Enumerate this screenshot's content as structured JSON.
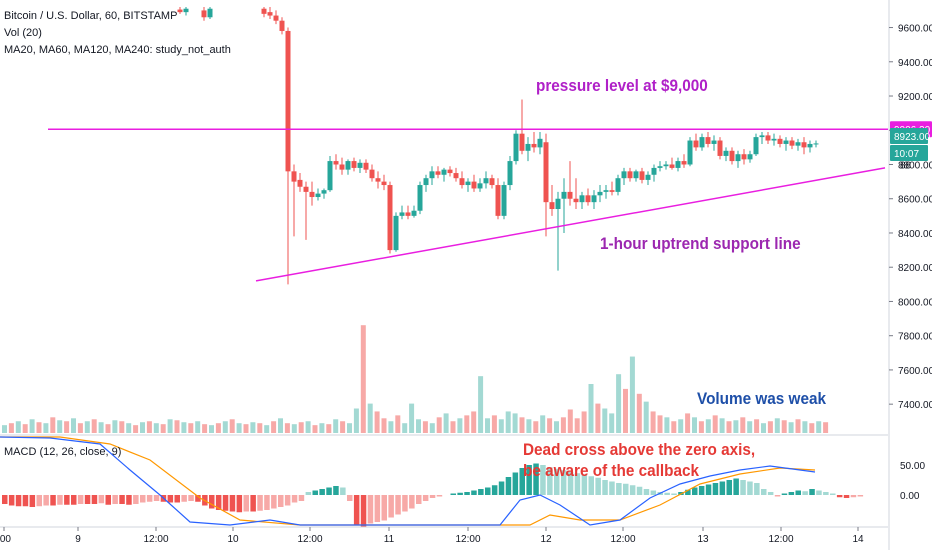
{
  "header": {
    "title": "Bitcoin / U.S. Dollar, 60, BITSTAMP",
    "vol": "Vol (20)",
    "ma": "MA20, MA60, MA120, MA240: study_not_auth"
  },
  "macd_header": "MACD (12, 26, close, 9)",
  "annotations": {
    "pressure": "pressure level at $9,000",
    "support": "1-hour uptrend support line",
    "volume": "Volume was weak",
    "dead_cross_1": "Dead cross above the zero axis,",
    "dead_cross_2": "be aware of the callback"
  },
  "price_badges": {
    "pressure": "9006.20",
    "last": "8923.00",
    "countdown": "10:07",
    "partial": "88"
  },
  "colors": {
    "up": "#26a69a",
    "down": "#ef5350",
    "up_light": "#a3d9d3",
    "down_light": "#f7a9a7",
    "magenta": "#e91ee0",
    "pressure_text": "#b020c8",
    "support_text": "#9c27b0",
    "volume_text": "#1e4fa8",
    "macd_text": "#e53935",
    "macd_line": "#2962ff",
    "signal_line": "#ff9800"
  },
  "chart_data": {
    "type": "candlestick",
    "price_axis": {
      "range": [
        7290,
        9720
      ],
      "ticks": [
        "9600.00",
        "9400.00",
        "9200.00",
        "9000.00",
        "8800.00",
        "8600.00",
        "8400.00",
        "8200.00",
        "8000.00",
        "7800.00",
        "7600.00",
        "7400.00"
      ]
    },
    "macd_axis": {
      "ticks": [
        "50.00",
        "0.00"
      ]
    },
    "time_axis": {
      "range": [
        0,
        868
      ],
      "labels": [
        {
          "t": 4,
          "label": ":00"
        },
        {
          "t": 78,
          "label": "9"
        },
        {
          "t": 156,
          "label": "12:00"
        },
        {
          "t": 233,
          "label": "10"
        },
        {
          "t": 310,
          "label": "12:00"
        },
        {
          "t": 389,
          "label": "11"
        },
        {
          "t": 468,
          "label": "12:00"
        },
        {
          "t": 546,
          "label": "12"
        },
        {
          "t": 623,
          "label": "12:00"
        },
        {
          "t": 703,
          "label": "13"
        },
        {
          "t": 781,
          "label": "12:00"
        },
        {
          "t": 858,
          "label": "14"
        }
      ]
    },
    "pressure_level": 9006.2,
    "support_line": [
      {
        "t": 256,
        "price": 8120
      },
      {
        "t": 885,
        "price": 8780
      }
    ],
    "candles": [
      {
        "t": 180,
        "o": 9705,
        "h": 9720,
        "l": 9680,
        "c": 9690
      },
      {
        "t": 186,
        "o": 9690,
        "h": 9720,
        "l": 9670,
        "c": 9710
      },
      {
        "t": 204,
        "o": 9700,
        "h": 9720,
        "l": 9640,
        "c": 9660
      },
      {
        "t": 210,
        "o": 9660,
        "h": 9720,
        "l": 9650,
        "c": 9710
      },
      {
        "t": 264,
        "o": 9710,
        "h": 9720,
        "l": 9660,
        "c": 9680
      },
      {
        "t": 270,
        "o": 9690,
        "h": 9720,
        "l": 9650,
        "c": 9670
      },
      {
        "t": 276,
        "o": 9670,
        "h": 9700,
        "l": 9620,
        "c": 9640
      },
      {
        "t": 282,
        "o": 9640,
        "h": 9660,
        "l": 9560,
        "c": 9580
      },
      {
        "t": 288,
        "o": 9580,
        "h": 9600,
        "l": 8100,
        "c": 8760
      },
      {
        "t": 294,
        "o": 8760,
        "h": 8800,
        "l": 8380,
        "c": 8700
      },
      {
        "t": 300,
        "o": 8710,
        "h": 8750,
        "l": 8640,
        "c": 8670
      },
      {
        "t": 306,
        "o": 8670,
        "h": 8700,
        "l": 8360,
        "c": 8640
      },
      {
        "t": 312,
        "o": 8640,
        "h": 8700,
        "l": 8560,
        "c": 8610
      },
      {
        "t": 318,
        "o": 8610,
        "h": 8660,
        "l": 8590,
        "c": 8630
      },
      {
        "t": 324,
        "o": 8630,
        "h": 8660,
        "l": 8600,
        "c": 8650
      },
      {
        "t": 330,
        "o": 8650,
        "h": 8850,
        "l": 8640,
        "c": 8820
      },
      {
        "t": 336,
        "o": 8820,
        "h": 8860,
        "l": 8770,
        "c": 8800
      },
      {
        "t": 342,
        "o": 8800,
        "h": 8840,
        "l": 8740,
        "c": 8770
      },
      {
        "t": 348,
        "o": 8770,
        "h": 8830,
        "l": 8740,
        "c": 8820
      },
      {
        "t": 354,
        "o": 8820,
        "h": 8840,
        "l": 8760,
        "c": 8780
      },
      {
        "t": 360,
        "o": 8780,
        "h": 8830,
        "l": 8750,
        "c": 8810
      },
      {
        "t": 366,
        "o": 8810,
        "h": 8830,
        "l": 8750,
        "c": 8770
      },
      {
        "t": 372,
        "o": 8770,
        "h": 8800,
        "l": 8700,
        "c": 8720
      },
      {
        "t": 378,
        "o": 8720,
        "h": 8760,
        "l": 8660,
        "c": 8700
      },
      {
        "t": 384,
        "o": 8700,
        "h": 8740,
        "l": 8650,
        "c": 8680
      },
      {
        "t": 390,
        "o": 8680,
        "h": 8700,
        "l": 8280,
        "c": 8300
      },
      {
        "t": 396,
        "o": 8300,
        "h": 8520,
        "l": 8290,
        "c": 8500
      },
      {
        "t": 402,
        "o": 8500,
        "h": 8560,
        "l": 8480,
        "c": 8520
      },
      {
        "t": 408,
        "o": 8520,
        "h": 8560,
        "l": 8480,
        "c": 8500
      },
      {
        "t": 414,
        "o": 8500,
        "h": 8560,
        "l": 8490,
        "c": 8530
      },
      {
        "t": 420,
        "o": 8530,
        "h": 8700,
        "l": 8510,
        "c": 8680
      },
      {
        "t": 426,
        "o": 8680,
        "h": 8740,
        "l": 8640,
        "c": 8720
      },
      {
        "t": 432,
        "o": 8720,
        "h": 8790,
        "l": 8680,
        "c": 8760
      },
      {
        "t": 438,
        "o": 8760,
        "h": 8790,
        "l": 8720,
        "c": 8740
      },
      {
        "t": 444,
        "o": 8740,
        "h": 8780,
        "l": 8700,
        "c": 8770
      },
      {
        "t": 450,
        "o": 8770,
        "h": 8790,
        "l": 8730,
        "c": 8750
      },
      {
        "t": 456,
        "o": 8750,
        "h": 8780,
        "l": 8700,
        "c": 8720
      },
      {
        "t": 462,
        "o": 8720,
        "h": 8760,
        "l": 8660,
        "c": 8680
      },
      {
        "t": 468,
        "o": 8680,
        "h": 8720,
        "l": 8640,
        "c": 8700
      },
      {
        "t": 474,
        "o": 8700,
        "h": 8740,
        "l": 8640,
        "c": 8660
      },
      {
        "t": 480,
        "o": 8660,
        "h": 8720,
        "l": 8640,
        "c": 8690
      },
      {
        "t": 486,
        "o": 8690,
        "h": 8760,
        "l": 8660,
        "c": 8720
      },
      {
        "t": 492,
        "o": 8720,
        "h": 8740,
        "l": 8660,
        "c": 8680
      },
      {
        "t": 498,
        "o": 8680,
        "h": 8720,
        "l": 8480,
        "c": 8500
      },
      {
        "t": 504,
        "o": 8500,
        "h": 8700,
        "l": 8480,
        "c": 8680
      },
      {
        "t": 510,
        "o": 8680,
        "h": 8850,
        "l": 8650,
        "c": 8820
      },
      {
        "t": 516,
        "o": 8820,
        "h": 9000,
        "l": 8800,
        "c": 8980
      },
      {
        "t": 522,
        "o": 8980,
        "h": 9180,
        "l": 8860,
        "c": 8880
      },
      {
        "t": 528,
        "o": 8880,
        "h": 8960,
        "l": 8820,
        "c": 8920
      },
      {
        "t": 534,
        "o": 8920,
        "h": 8990,
        "l": 8870,
        "c": 8900
      },
      {
        "t": 540,
        "o": 8900,
        "h": 8990,
        "l": 8860,
        "c": 8950
      },
      {
        "t": 546,
        "o": 8930,
        "h": 8980,
        "l": 8380,
        "c": 8580
      },
      {
        "t": 552,
        "o": 8580,
        "h": 8680,
        "l": 8500,
        "c": 8540
      },
      {
        "t": 558,
        "o": 8540,
        "h": 8640,
        "l": 8180,
        "c": 8600
      },
      {
        "t": 564,
        "o": 8600,
        "h": 8720,
        "l": 8400,
        "c": 8640
      },
      {
        "t": 570,
        "o": 8640,
        "h": 8820,
        "l": 8560,
        "c": 8600
      },
      {
        "t": 576,
        "o": 8600,
        "h": 8720,
        "l": 8540,
        "c": 8580
      },
      {
        "t": 582,
        "o": 8580,
        "h": 8640,
        "l": 8540,
        "c": 8620
      },
      {
        "t": 588,
        "o": 8620,
        "h": 8660,
        "l": 8560,
        "c": 8580
      },
      {
        "t": 594,
        "o": 8580,
        "h": 8650,
        "l": 8540,
        "c": 8620
      },
      {
        "t": 600,
        "o": 8620,
        "h": 8680,
        "l": 8580,
        "c": 8640
      },
      {
        "t": 606,
        "o": 8640,
        "h": 8680,
        "l": 8600,
        "c": 8650
      },
      {
        "t": 612,
        "o": 8650,
        "h": 8700,
        "l": 8620,
        "c": 8640
      },
      {
        "t": 618,
        "o": 8640,
        "h": 8740,
        "l": 8620,
        "c": 8720
      },
      {
        "t": 624,
        "o": 8720,
        "h": 8780,
        "l": 8680,
        "c": 8760
      },
      {
        "t": 630,
        "o": 8760,
        "h": 8780,
        "l": 8700,
        "c": 8720
      },
      {
        "t": 636,
        "o": 8720,
        "h": 8770,
        "l": 8700,
        "c": 8760
      },
      {
        "t": 642,
        "o": 8760,
        "h": 8780,
        "l": 8690,
        "c": 8710
      },
      {
        "t": 648,
        "o": 8710,
        "h": 8760,
        "l": 8680,
        "c": 8740
      },
      {
        "t": 654,
        "o": 8740,
        "h": 8800,
        "l": 8700,
        "c": 8780
      },
      {
        "t": 660,
        "o": 8780,
        "h": 8820,
        "l": 8760,
        "c": 8790
      },
      {
        "t": 666,
        "o": 8790,
        "h": 8820,
        "l": 8770,
        "c": 8800
      },
      {
        "t": 672,
        "o": 8800,
        "h": 8840,
        "l": 8770,
        "c": 8780
      },
      {
        "t": 678,
        "o": 8780,
        "h": 8840,
        "l": 8760,
        "c": 8820
      },
      {
        "t": 684,
        "o": 8820,
        "h": 8860,
        "l": 8780,
        "c": 8800
      },
      {
        "t": 690,
        "o": 8800,
        "h": 8960,
        "l": 8790,
        "c": 8940
      },
      {
        "t": 696,
        "o": 8940,
        "h": 8980,
        "l": 8880,
        "c": 8900
      },
      {
        "t": 702,
        "o": 8900,
        "h": 8980,
        "l": 8880,
        "c": 8960
      },
      {
        "t": 708,
        "o": 8960,
        "h": 8990,
        "l": 8900,
        "c": 8920
      },
      {
        "t": 714,
        "o": 8920,
        "h": 8970,
        "l": 8880,
        "c": 8940
      },
      {
        "t": 720,
        "o": 8940,
        "h": 8960,
        "l": 8830,
        "c": 8850
      },
      {
        "t": 726,
        "o": 8850,
        "h": 8900,
        "l": 8820,
        "c": 8880
      },
      {
        "t": 732,
        "o": 8880,
        "h": 8900,
        "l": 8800,
        "c": 8820
      },
      {
        "t": 738,
        "o": 8820,
        "h": 8880,
        "l": 8780,
        "c": 8860
      },
      {
        "t": 744,
        "o": 8860,
        "h": 8890,
        "l": 8800,
        "c": 8830
      },
      {
        "t": 750,
        "o": 8830,
        "h": 8880,
        "l": 8810,
        "c": 8860
      },
      {
        "t": 756,
        "o": 8860,
        "h": 8980,
        "l": 8850,
        "c": 8960
      },
      {
        "t": 762,
        "o": 8960,
        "h": 8990,
        "l": 8920,
        "c": 8970
      },
      {
        "t": 768,
        "o": 8970,
        "h": 8990,
        "l": 8920,
        "c": 8940
      },
      {
        "t": 774,
        "o": 8940,
        "h": 8980,
        "l": 8910,
        "c": 8950
      },
      {
        "t": 780,
        "o": 8950,
        "h": 8970,
        "l": 8900,
        "c": 8920
      },
      {
        "t": 786,
        "o": 8920,
        "h": 8960,
        "l": 8880,
        "c": 8940
      },
      {
        "t": 792,
        "o": 8940,
        "h": 8960,
        "l": 8890,
        "c": 8910
      },
      {
        "t": 798,
        "o": 8910,
        "h": 8950,
        "l": 8880,
        "c": 8930
      },
      {
        "t": 804,
        "o": 8930,
        "h": 8960,
        "l": 8860,
        "c": 8900
      },
      {
        "t": 810,
        "o": 8900,
        "h": 8940,
        "l": 8870,
        "c": 8920
      },
      {
        "t": 816,
        "o": 8920,
        "h": 8940,
        "l": 8900,
        "c": 8923
      }
    ],
    "volume": [
      8,
      10,
      12,
      9,
      14,
      11,
      10,
      16,
      13,
      12,
      15,
      10,
      12,
      14,
      11,
      9,
      13,
      12,
      10,
      8,
      11,
      12,
      10,
      9,
      14,
      13,
      11,
      10,
      12,
      9,
      8,
      10,
      12,
      14,
      10,
      9,
      11,
      10,
      8,
      12,
      15,
      10,
      9,
      11,
      12,
      8,
      10,
      9,
      14,
      12,
      10,
      25,
      110,
      30,
      22,
      15,
      12,
      18,
      10,
      30,
      14,
      12,
      10,
      16,
      20,
      12,
      15,
      18,
      22,
      58,
      15,
      18,
      14,
      22,
      20,
      16,
      14,
      12,
      18,
      15,
      12,
      16,
      24,
      15,
      22,
      50,
      30,
      25,
      20,
      60,
      45,
      78,
      40,
      32,
      22,
      18,
      16,
      12,
      14,
      20,
      16,
      12,
      14,
      18,
      15,
      12,
      13,
      16,
      12,
      14,
      10,
      12,
      15,
      13,
      11,
      14,
      12,
      10,
      12,
      11
    ],
    "macd_hist": [
      -12,
      -14,
      -15,
      -15,
      -16,
      -15,
      -14,
      -14,
      -13,
      -13,
      -13,
      -12,
      -12,
      -12,
      -11,
      -13,
      -12,
      -12,
      -13,
      -12,
      -10,
      -9,
      -8,
      -9,
      -10,
      -10,
      -9,
      -8,
      -9,
      -14,
      -18,
      -20,
      -21,
      -22,
      -23,
      -22,
      -22,
      -21,
      -20,
      -18,
      -16,
      -14,
      -10,
      -8,
      4,
      6,
      8,
      10,
      12,
      10,
      -8,
      -40,
      -42,
      -38,
      -36,
      -34,
      -30,
      -26,
      -22,
      -18,
      -12,
      -8,
      -4,
      -2,
      0,
      2,
      3,
      4,
      6,
      8,
      10,
      13,
      18,
      24,
      30,
      36,
      40,
      42,
      40,
      37,
      35,
      33,
      31,
      29,
      27,
      25,
      23,
      20,
      18,
      16,
      15,
      13,
      11,
      8,
      6,
      4,
      3,
      2,
      4,
      7,
      10,
      12,
      14,
      16,
      18,
      20,
      22,
      20,
      18,
      16,
      8,
      4,
      -2,
      2,
      4,
      6,
      5,
      8,
      6,
      4,
      2,
      -3,
      -4,
      -3,
      -2
    ]
  }
}
